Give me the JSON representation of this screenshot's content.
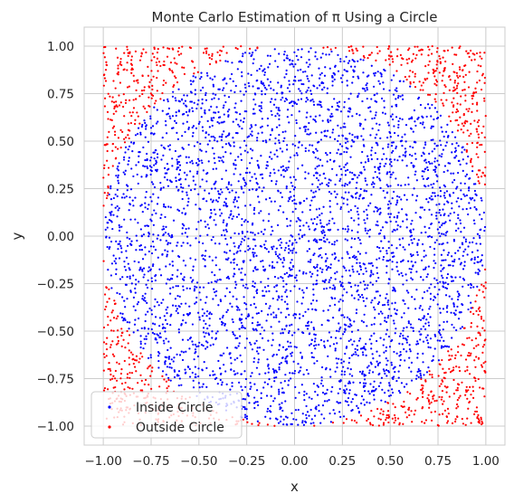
{
  "chart_data": {
    "type": "scatter",
    "title": "Monte Carlo Estimation of π Using a Circle",
    "xlabel": "x",
    "ylabel": "y",
    "xlim": [
      -1.1,
      1.1
    ],
    "ylim": [
      -1.1,
      1.1
    ],
    "xticks": [
      -1.0,
      -0.75,
      -0.5,
      -0.25,
      0.0,
      0.25,
      0.5,
      0.75,
      1.0
    ],
    "yticks": [
      -1.0,
      -0.75,
      -0.5,
      -0.25,
      0.0,
      0.25,
      0.5,
      0.75,
      1.0
    ],
    "xtick_labels": [
      "−1.00",
      "−0.75",
      "−0.50",
      "−0.25",
      "0.00",
      "0.25",
      "0.50",
      "0.75",
      "1.00"
    ],
    "ytick_labels": [
      "−1.00",
      "−0.75",
      "−0.50",
      "−0.25",
      "0.00",
      "0.25",
      "0.50",
      "0.75",
      "1.00"
    ],
    "grid": true,
    "legend_position": "lower-left",
    "point_sampling": {
      "distribution": "uniform",
      "x_range": [
        -1,
        1
      ],
      "y_range": [
        -1,
        1
      ],
      "n_points": 5000,
      "circle_radius": 1,
      "circle_center": [
        0,
        0
      ]
    },
    "series": [
      {
        "name": "Inside Circle",
        "color": "#0000ff",
        "rule": "x^2 + y^2 <= 1"
      },
      {
        "name": "Outside Circle",
        "color": "#ff0000",
        "rule": "x^2 + y^2 > 1"
      }
    ]
  }
}
